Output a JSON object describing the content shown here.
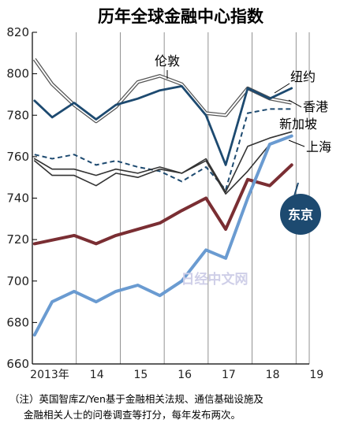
{
  "chart_data": {
    "type": "line",
    "title": "历年全球金融中心指数",
    "x_tick_labels": [
      "2013年",
      "14",
      "15",
      "16",
      "17",
      "18",
      "19"
    ],
    "x_ticks": [
      2013,
      2014,
      2015,
      2016,
      2017,
      2018,
      2019
    ],
    "ylim": [
      660,
      820
    ],
    "y_ticks": [
      660,
      680,
      700,
      720,
      740,
      760,
      780,
      800,
      820
    ],
    "grid": "vertical",
    "series": [
      {
        "name": "伦敦",
        "color": "#555555",
        "style": "double",
        "x": [
          2013.05,
          2013.45,
          2013.95,
          2014.45,
          2014.9,
          2015.4,
          2015.9,
          2016.4,
          2016.95,
          2017.4,
          2017.9,
          2018.4,
          2018.9
        ],
        "y": [
          807,
          795,
          785,
          777,
          784,
          796,
          799,
          795,
          781,
          780,
          793,
          788,
          786
        ]
      },
      {
        "name": "纽约",
        "color": "#1d4a70",
        "style": "solid",
        "x": [
          2013.05,
          2013.45,
          2013.95,
          2014.45,
          2014.9,
          2015.4,
          2015.9,
          2016.4,
          2016.95,
          2017.4,
          2017.9,
          2018.4,
          2018.9
        ],
        "y": [
          787,
          779,
          786,
          778,
          785,
          788,
          792,
          794,
          780,
          756,
          793,
          788,
          793
        ]
      },
      {
        "name": "香港",
        "color": "#1d4a70",
        "style": "dashed",
        "x": [
          2013.05,
          2013.45,
          2013.95,
          2014.45,
          2014.9,
          2015.4,
          2015.9,
          2016.4,
          2016.95,
          2017.4,
          2017.9,
          2018.4,
          2018.9
        ],
        "y": [
          761,
          759,
          761,
          756,
          758,
          755,
          753,
          748,
          755,
          744,
          781,
          783,
          783
        ]
      },
      {
        "name": "新加坡",
        "color": "#333333",
        "style": "solid",
        "x": [
          2013.05,
          2013.45,
          2013.95,
          2014.45,
          2014.9,
          2015.4,
          2015.9,
          2016.4,
          2016.95,
          2017.4,
          2017.9,
          2018.4,
          2018.9
        ],
        "y": [
          759,
          754,
          754,
          751,
          754,
          752,
          755,
          752,
          759,
          743,
          765,
          769,
          772
        ]
      },
      {
        "name": "上海",
        "color": "#333333",
        "style": "solid",
        "x": [
          2013.05,
          2013.45,
          2013.95,
          2014.45,
          2014.9,
          2015.4,
          2015.9,
          2016.4,
          2016.95,
          2017.4,
          2017.9,
          2018.4,
          2018.9
        ],
        "y": [
          758,
          751,
          751,
          746,
          752,
          750,
          754,
          752,
          758,
          742,
          753,
          766,
          770
        ]
      },
      {
        "name": "东京",
        "color": "#7a2e33",
        "style": "solid",
        "x": [
          2013.05,
          2013.95,
          2014.45,
          2014.9,
          2015.9,
          2016.4,
          2016.95,
          2017.4,
          2017.9,
          2018.4,
          2018.9
        ],
        "y": [
          718,
          722,
          718,
          722,
          728,
          734,
          740,
          725,
          749,
          746,
          756
        ]
      },
      {
        "name": "",
        "color": "#6a9bd1",
        "style": "solid",
        "x": [
          2013.05,
          2013.45,
          2013.95,
          2014.45,
          2014.9,
          2015.4,
          2015.9,
          2016.4,
          2016.95,
          2017.4,
          2017.9,
          2018.4,
          2018.9
        ],
        "y": [
          674,
          690,
          695,
          690,
          695,
          698,
          693,
          700,
          715,
          711,
          740,
          766,
          770
        ]
      }
    ],
    "labels": {
      "london": "伦敦",
      "new_york": "纽约",
      "hong_kong": "香港",
      "singapore": "新加坡",
      "shanghai": "上海",
      "tokyo": "东京"
    },
    "watermark": "日经中文网",
    "note_line1": "（注）英国智库Z/Yen基于金融相关法规、通信基础设施及",
    "note_line2": "金融相关人士的问卷调查等打分，每年发布两次。"
  }
}
